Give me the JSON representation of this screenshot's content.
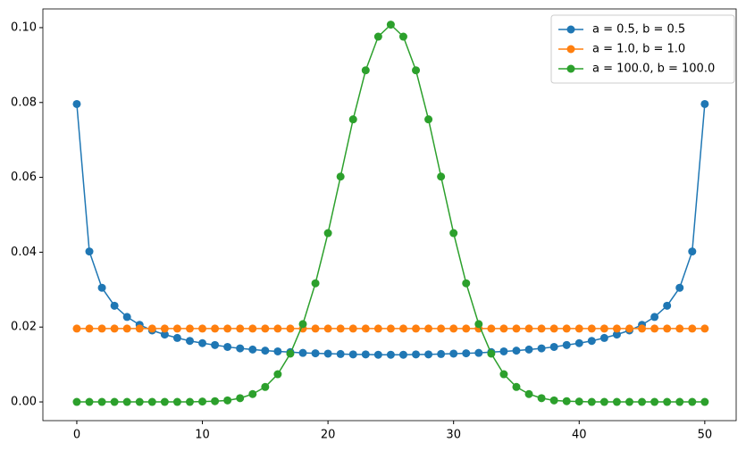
{
  "chart_data": {
    "type": "line",
    "x": [
      0,
      1,
      2,
      3,
      4,
      5,
      6,
      7,
      8,
      9,
      10,
      11,
      12,
      13,
      14,
      15,
      16,
      17,
      18,
      19,
      20,
      21,
      22,
      23,
      24,
      25,
      26,
      27,
      28,
      29,
      30,
      31,
      32,
      33,
      34,
      35,
      36,
      37,
      38,
      39,
      40,
      41,
      42,
      43,
      44,
      45,
      46,
      47,
      48,
      49,
      50
    ],
    "series": [
      {
        "name": "a = 0.5, b = 0.5",
        "color": "#1f77b4",
        "values": [
          0.0796,
          0.0402,
          0.0305,
          0.0257,
          0.0227,
          0.0206,
          0.0191,
          0.018,
          0.0171,
          0.0163,
          0.0157,
          0.0152,
          0.0147,
          0.0143,
          0.014,
          0.0137,
          0.0135,
          0.0133,
          0.0131,
          0.013,
          0.0129,
          0.0128,
          0.0127,
          0.0127,
          0.0126,
          0.0126,
          0.0126,
          0.0127,
          0.0127,
          0.0128,
          0.0129,
          0.013,
          0.0131,
          0.0133,
          0.0135,
          0.0137,
          0.014,
          0.0143,
          0.0147,
          0.0152,
          0.0157,
          0.0163,
          0.0171,
          0.018,
          0.0191,
          0.0206,
          0.0227,
          0.0257,
          0.0305,
          0.0402,
          0.0796
        ]
      },
      {
        "name": "a = 1.0, b = 1.0",
        "color": "#ff7f0e",
        "values": [
          0.0196,
          0.0196,
          0.0196,
          0.0196,
          0.0196,
          0.0196,
          0.0196,
          0.0196,
          0.0196,
          0.0196,
          0.0196,
          0.0196,
          0.0196,
          0.0196,
          0.0196,
          0.0196,
          0.0196,
          0.0196,
          0.0196,
          0.0196,
          0.0196,
          0.0196,
          0.0196,
          0.0196,
          0.0196,
          0.0196,
          0.0196,
          0.0196,
          0.0196,
          0.0196,
          0.0196,
          0.0196,
          0.0196,
          0.0196,
          0.0196,
          0.0196,
          0.0196,
          0.0196,
          0.0196,
          0.0196,
          0.0196,
          0.0196,
          0.0196,
          0.0196,
          0.0196,
          0.0196,
          0.0196,
          0.0196,
          0.0196,
          0.0196,
          0.0196
        ]
      },
      {
        "name": "a = 100.0, b = 100.0",
        "color": "#2ca02c",
        "values": [
          0,
          0,
          0,
          0,
          0,
          0,
          0,
          0,
          0,
          0,
          0.0001,
          0.0002,
          0.0004,
          0.001,
          0.0021,
          0.004,
          0.0074,
          0.0129,
          0.0208,
          0.0317,
          0.0451,
          0.0602,
          0.0755,
          0.0886,
          0.0976,
          0.1008,
          0.0976,
          0.0886,
          0.0755,
          0.0602,
          0.0451,
          0.0317,
          0.0208,
          0.0129,
          0.0074,
          0.004,
          0.0021,
          0.001,
          0.0004,
          0.0002,
          0.0001,
          0,
          0,
          0,
          0,
          0,
          0,
          0,
          0,
          0,
          0
        ]
      }
    ],
    "xlim": [
      -2.7,
      52.5
    ],
    "xticks": [
      0,
      10,
      20,
      30,
      40,
      50
    ],
    "ylim": [
      -0.005,
      0.105
    ],
    "yticks": [
      {
        "value": 0,
        "label": "0.00"
      },
      {
        "value": 0.02,
        "label": "0.02"
      },
      {
        "value": 0.04,
        "label": "0.04"
      },
      {
        "value": 0.06,
        "label": "0.06"
      },
      {
        "value": 0.08,
        "label": "0.08"
      },
      {
        "value": 0.1,
        "label": "0.10"
      }
    ],
    "legend": "upper right",
    "grid": false
  }
}
